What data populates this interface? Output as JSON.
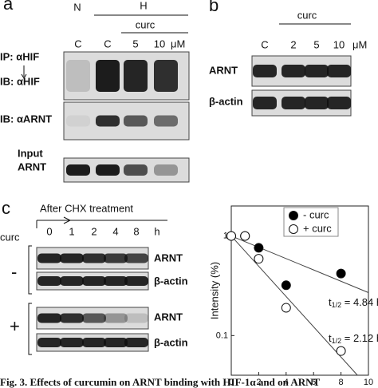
{
  "panels": {
    "a": {
      "label": "a",
      "lanes_top": [
        "N",
        "H"
      ],
      "curc": "curc",
      "lanes": [
        "C",
        "C",
        "5",
        "10"
      ],
      "unit": "μM",
      "ip": "IP: αHIF",
      "ib1": "IB: αHIF",
      "ib2": "IB: αARNT",
      "input": [
        "Input",
        "ARNT"
      ]
    },
    "b": {
      "label": "b",
      "curc": "curc",
      "lanes": [
        "C",
        "2",
        "5",
        "10"
      ],
      "unit": "μM",
      "rows": [
        "ARNT",
        "β-actin"
      ]
    },
    "c": {
      "label": "c",
      "treatment": "After CHX treatment",
      "curc": "curc",
      "times": [
        "0",
        "1",
        "2",
        "4",
        "8"
      ],
      "unit": "h",
      "groups": [
        "-",
        "+"
      ],
      "rows": [
        "ARNT",
        "β-actin"
      ]
    }
  },
  "chart_data": {
    "type": "scatter",
    "ylabel": "Intensity (%)",
    "xlabel": "Incubation (h)",
    "xlim": [
      0,
      10
    ],
    "ylim": [
      0.04,
      2
    ],
    "log_y": true,
    "xticks": [
      0,
      2,
      4,
      6,
      8,
      10
    ],
    "yticks": [
      0.1,
      1
    ],
    "legend": "upper center",
    "series": [
      {
        "name": "- curc",
        "color": "#000000",
        "x": [
          0,
          1,
          2,
          4,
          8
        ],
        "values": [
          1,
          1,
          0.76,
          0.32,
          0.42
        ],
        "fit": {
          "x": [
            0,
            10
          ],
          "values": [
            1,
            0.27
          ]
        },
        "annotation": {
          "t": "t",
          "sub": "1/2",
          "text": " = 4.84 h"
        }
      },
      {
        "name": "+ curc",
        "color": "#ffffff",
        "x": [
          0,
          1,
          2,
          4,
          8
        ],
        "values": [
          1,
          1,
          0.59,
          0.19,
          0.07
        ],
        "fit": {
          "x": [
            0,
            9.2
          ],
          "values": [
            1,
            0.04
          ]
        },
        "annotation": {
          "t": "t",
          "sub": "1/2",
          "text": " = 2.12 h"
        }
      }
    ]
  },
  "caption": "Fig. 3. Effects of curcumin on ARNT binding with HIF-1α and on ARNT"
}
